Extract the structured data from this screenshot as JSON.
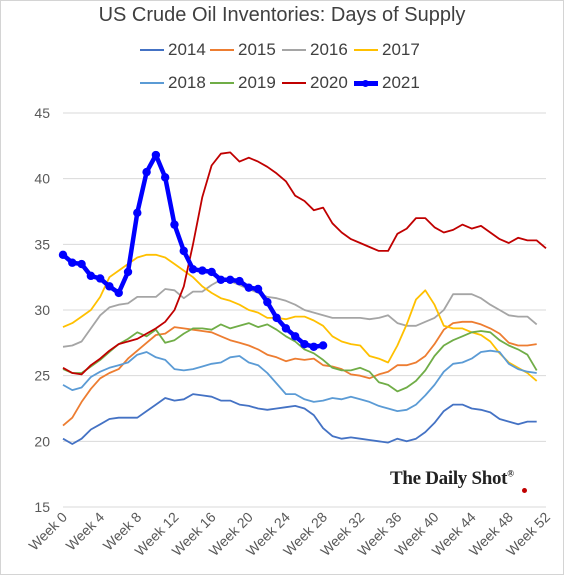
{
  "chart_data": {
    "type": "line",
    "title": "US Crude Oil Inventories: Days of Supply",
    "xlabel": "",
    "ylabel": "",
    "ylim": [
      15,
      45
    ],
    "yticks": [
      15,
      20,
      25,
      30,
      35,
      40,
      45
    ],
    "xlim": [
      0,
      52
    ],
    "xticks": [
      "Week 0",
      "Week 4",
      "Week 8",
      "Week 12",
      "Week 16",
      "Week 20",
      "Week 24",
      "Week 28",
      "Week 32",
      "Week 36",
      "Week 40",
      "Week 44",
      "Week 48",
      "Week 52"
    ],
    "xtick_values": [
      0,
      4,
      8,
      12,
      16,
      20,
      24,
      28,
      32,
      36,
      40,
      44,
      48,
      52
    ],
    "grid": "horizontal",
    "legend_position": "top",
    "series": [
      {
        "name": "2014",
        "color": "#4472c4",
        "values": [
          20.2,
          19.8,
          20.2,
          20.9,
          21.3,
          21.7,
          21.8,
          21.8,
          21.8,
          22.3,
          22.8,
          23.3,
          23.1,
          23.2,
          23.6,
          23.5,
          23.4,
          23.1,
          23.1,
          22.8,
          22.7,
          22.5,
          22.4,
          22.5,
          22.6,
          22.7,
          22.5,
          22.0,
          21.0,
          20.4,
          20.2,
          20.3,
          20.2,
          20.1,
          20.0,
          19.9,
          20.2,
          20.0,
          20.2,
          20.7,
          21.4,
          22.3,
          22.8,
          22.8,
          22.5,
          22.4,
          22.2,
          21.7,
          21.5,
          21.3,
          21.5,
          21.5
        ]
      },
      {
        "name": "2015",
        "color": "#ed7d31",
        "values": [
          21.2,
          21.8,
          23.0,
          24.0,
          24.8,
          25.2,
          25.5,
          26.3,
          26.9,
          27.5,
          28.1,
          28.2,
          28.7,
          28.6,
          28.5,
          28.4,
          28.3,
          28.0,
          27.7,
          27.5,
          27.3,
          27.0,
          26.6,
          26.4,
          26.1,
          26.3,
          26.2,
          26.3,
          25.8,
          25.7,
          25.5,
          25.1,
          25.0,
          24.8,
          25.1,
          25.3,
          25.8,
          25.8,
          26.0,
          26.5,
          27.4,
          28.5,
          29.0,
          29.1,
          29.1,
          28.9,
          28.6,
          28.2,
          27.5,
          27.3,
          27.3,
          27.4
        ]
      },
      {
        "name": "2016",
        "color": "#a5a5a5",
        "values": [
          27.2,
          27.3,
          27.6,
          28.6,
          29.6,
          30.2,
          30.4,
          30.5,
          31.0,
          31.0,
          31.0,
          31.6,
          31.5,
          30.9,
          31.4,
          31.4,
          31.9,
          32.3,
          32.2,
          31.9,
          31.6,
          31.3,
          31.0,
          30.9,
          30.7,
          30.4,
          30.0,
          29.8,
          29.6,
          29.4,
          29.4,
          29.4,
          29.4,
          29.3,
          29.4,
          29.6,
          29.0,
          28.8,
          28.8,
          29.1,
          29.4,
          30.0,
          31.2,
          31.2,
          31.2,
          30.9,
          30.4,
          30.0,
          29.6,
          29.5,
          29.5,
          28.9
        ]
      },
      {
        "name": "2017",
        "color": "#ffc000",
        "values": [
          28.7,
          29.0,
          29.5,
          30.0,
          31.0,
          32.5,
          33.0,
          33.5,
          34.0,
          34.2,
          34.2,
          34.0,
          33.5,
          33.0,
          32.5,
          31.8,
          31.3,
          30.9,
          30.7,
          30.4,
          30.0,
          29.8,
          29.4,
          29.4,
          29.3,
          29.5,
          29.5,
          29.2,
          28.8,
          28.0,
          27.6,
          27.4,
          27.3,
          26.5,
          26.3,
          26.0,
          27.3,
          28.9,
          30.8,
          31.5,
          30.4,
          28.8,
          28.6,
          28.6,
          28.3,
          28.1,
          27.6,
          26.7,
          26.0,
          25.6,
          25.2,
          24.6
        ]
      },
      {
        "name": "2018",
        "color": "#5b9bd5",
        "values": [
          24.3,
          23.9,
          24.1,
          24.9,
          25.3,
          25.6,
          25.8,
          26.0,
          26.6,
          26.8,
          26.4,
          26.2,
          25.5,
          25.4,
          25.5,
          25.7,
          25.9,
          26.0,
          26.4,
          26.5,
          26.0,
          25.8,
          25.2,
          24.4,
          23.6,
          23.6,
          23.2,
          23.0,
          23.1,
          23.3,
          23.2,
          23.4,
          23.2,
          23.0,
          22.7,
          22.5,
          22.3,
          22.4,
          22.8,
          23.5,
          24.3,
          25.3,
          25.9,
          26.0,
          26.3,
          26.8,
          26.9,
          26.8,
          25.9,
          25.5,
          25.3,
          25.2
        ]
      },
      {
        "name": "2019",
        "color": "#70ad47",
        "values": [
          25.5,
          25.2,
          25.2,
          25.7,
          26.2,
          26.8,
          27.4,
          27.8,
          28.3,
          28.0,
          28.5,
          27.5,
          27.7,
          28.2,
          28.6,
          28.6,
          28.5,
          28.9,
          28.6,
          28.8,
          29.0,
          28.7,
          28.9,
          28.5,
          28.0,
          27.6,
          27.0,
          26.7,
          26.2,
          25.6,
          25.4,
          25.4,
          25.6,
          25.3,
          24.5,
          24.3,
          23.8,
          24.1,
          24.6,
          25.4,
          26.5,
          27.3,
          27.7,
          28.0,
          28.3,
          28.4,
          28.3,
          27.7,
          27.3,
          27.0,
          26.6,
          25.4
        ]
      },
      {
        "name": "2020",
        "color": "#c00000",
        "values": [
          25.6,
          25.2,
          25.1,
          25.8,
          26.3,
          26.9,
          27.4,
          27.6,
          27.8,
          28.2,
          28.6,
          29.1,
          30.0,
          31.8,
          35.0,
          38.6,
          41.0,
          41.9,
          42.0,
          41.3,
          41.6,
          41.3,
          40.9,
          40.4,
          39.8,
          38.7,
          38.3,
          37.6,
          37.8,
          36.6,
          35.9,
          35.4,
          35.1,
          34.8,
          34.5,
          34.5,
          35.8,
          36.2,
          37.0,
          37.0,
          36.3,
          35.9,
          36.1,
          36.5,
          36.2,
          36.4,
          35.9,
          35.4,
          35.1,
          35.5,
          35.3,
          35.3,
          34.7
        ]
      },
      {
        "name": "2021",
        "color": "#0000ff",
        "bold": true,
        "markers": true,
        "values": [
          34.2,
          33.6,
          33.5,
          32.6,
          32.4,
          31.8,
          31.3,
          32.9,
          37.4,
          40.5,
          41.8,
          40.1,
          36.5,
          34.5,
          33.1,
          33.0,
          32.9,
          32.3,
          32.3,
          32.2,
          31.7,
          31.6,
          30.6,
          29.4,
          28.6,
          28.0,
          27.4,
          27.2,
          27.3
        ]
      }
    ]
  },
  "legend": {
    "items": [
      "2014",
      "2015",
      "2016",
      "2017",
      "2018",
      "2019",
      "2020",
      "2021"
    ]
  },
  "watermark": {
    "text": "The Daily Shot",
    "mark": "®"
  }
}
